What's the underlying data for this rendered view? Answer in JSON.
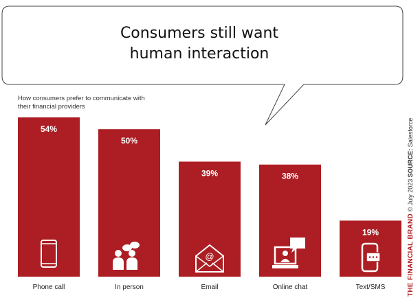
{
  "callout": {
    "title_line1": "Consumers still want",
    "title_line2": "human interaction"
  },
  "credit": {
    "brand": "THE FINANCIAL BRAND",
    "date": "© July 2023",
    "source_label": "SOURCE:",
    "source": "Salesforce"
  },
  "colors": {
    "bar": "#ac1e23",
    "icon": "#ffffff"
  },
  "chart_data": {
    "type": "bar",
    "title": "How consumers prefer to communicate with their financial providers",
    "subtitle_line1": "How consumers prefer to communicate with",
    "subtitle_line2": "their financial providers",
    "categories": [
      "Phone call",
      "In person",
      "Email",
      "Online chat",
      "Text/SMS"
    ],
    "values": [
      54,
      50,
      39,
      38,
      19
    ],
    "labels": [
      "54%",
      "50%",
      "39%",
      "38%",
      "19%"
    ],
    "icons": [
      "phone-icon",
      "people-chat-icon",
      "email-icon",
      "online-chat-icon",
      "text-sms-icon"
    ],
    "ylim": [
      0,
      54
    ],
    "grid": false,
    "xlabel": "",
    "ylabel": ""
  }
}
